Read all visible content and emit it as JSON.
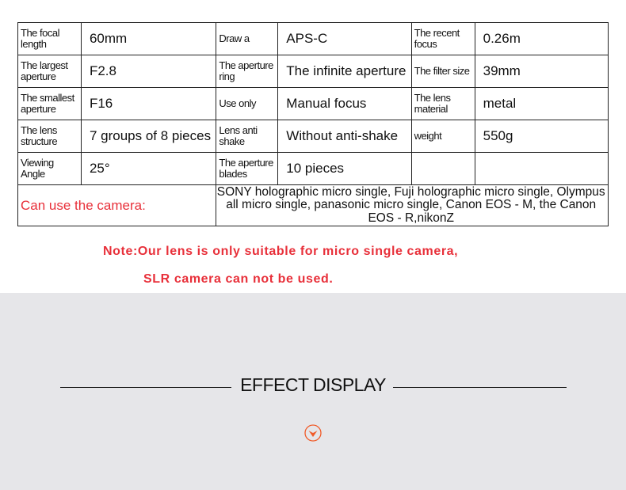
{
  "specs": {
    "rows": [
      [
        {
          "label": "The focal length",
          "value": "60mm"
        },
        {
          "label": "Draw a",
          "value": "APS-C"
        },
        {
          "label": "The recent focus",
          "value": "0.26m"
        }
      ],
      [
        {
          "label": "The largest aperture",
          "value": "F2.8"
        },
        {
          "label": "The aperture ring",
          "value": "The infinite aperture"
        },
        {
          "label": "The filter size",
          "value": "39mm"
        }
      ],
      [
        {
          "label": "The smallest aperture",
          "value": "F16"
        },
        {
          "label": "Use only",
          "value": "Manual focus"
        },
        {
          "label": "The lens material",
          "value": "metal"
        }
      ],
      [
        {
          "label": "The lens structure",
          "value": "7 groups of 8 pieces"
        },
        {
          "label": "Lens anti shake",
          "value": "Without anti-shake"
        },
        {
          "label": "weight",
          "value": "550g"
        }
      ],
      [
        {
          "label": "Viewing Angle",
          "value": "25°"
        },
        {
          "label": "The aperture blades",
          "value": "10 pieces"
        },
        {
          "label": "",
          "value": ""
        }
      ]
    ],
    "camera_label": "Can use the camera:",
    "camera_text": "SONY holographic micro single, Fuji holographic micro single, Olympus all micro single, panasonic micro single, Canon EOS - M, the Canon EOS - R,nikonZ"
  },
  "note": {
    "line1": "Note:Our lens is only suitable for micro single camera,",
    "line2": "SLR camera can not be used."
  },
  "section": {
    "title": "EFFECT DISPLAY",
    "accent": "#f05a28",
    "icon": "chevron-down-circle-icon"
  }
}
